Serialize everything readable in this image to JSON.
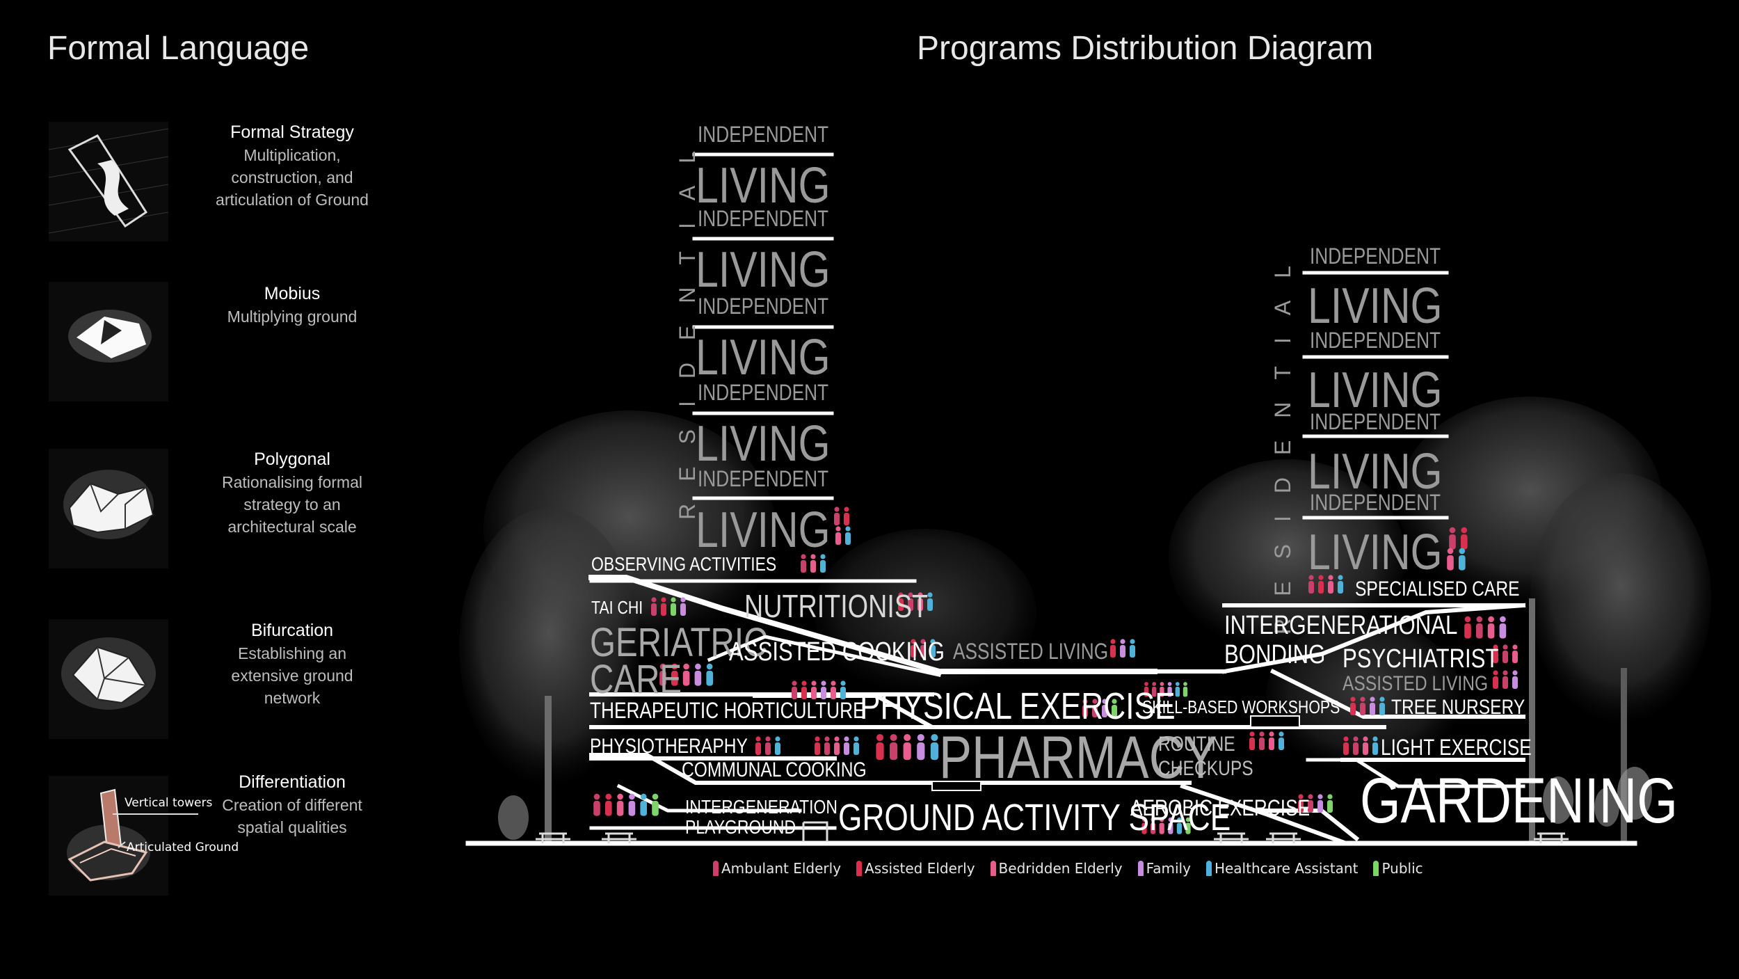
{
  "left_title": "Formal Language",
  "right_title": "Programs Distribution Diagram",
  "formal_items": [
    {
      "heading": "Formal Strategy",
      "body": "Multiplication,\nconstruction, and\narticulation of Ground",
      "icon": "twisted-ribbon-icon"
    },
    {
      "heading": "Mobius",
      "body": "Multiplying ground",
      "icon": "mobius-form-icon"
    },
    {
      "heading": "Polygonal",
      "body": "Rationalising formal\nstrategy to an\narchitectural scale",
      "icon": "polygonal-form-icon"
    },
    {
      "heading": "Bifurcation",
      "body": "Establishing an\nextensive ground\nnetwork",
      "icon": "bifurcation-form-icon"
    },
    {
      "heading": "Differentiation",
      "body": "Creation of different\nspatial qualities",
      "icon": "differentiation-model-icon"
    }
  ],
  "differentiation_callouts": {
    "towers": "Vertical towers",
    "ground": "Articulated Ground"
  },
  "residential_label": "RESIDENTIAL",
  "tower_units": [
    {
      "top": "INDEPENDENT",
      "bottom": "LIVING"
    },
    {
      "top": "INDEPENDENT",
      "bottom": "LIVING"
    },
    {
      "top": "INDEPENDENT",
      "bottom": "LIVING"
    },
    {
      "top": "INDEPENDENT",
      "bottom": "LIVING"
    },
    {
      "top": "INDEPENDENT",
      "bottom": "LIVING"
    }
  ],
  "right_tower_units": [
    {
      "top": "INDEPENDENT",
      "bottom": "LIVING"
    },
    {
      "top": "INDEPENDENT",
      "bottom": "LIVING"
    },
    {
      "top": "INDEPENDENT",
      "bottom": "LIVING"
    },
    {
      "top": "INDEPENDENT",
      "bottom": "LIVING"
    }
  ],
  "programs": {
    "observing": "OBSERVING ACTIVITIES",
    "tai_chi": "TAI CHI",
    "nutritionist": "NUTRITIONIST",
    "geriatric": "GERIATRIC",
    "care": "CARE",
    "assisted_cooking": "ASSISTED COOKING",
    "assisted_living": "ASSISTED LIVING",
    "therapeutic": "THERAPEUTIC HORTICULTURE",
    "physical_exercise": "PHYSICAL EXERCISE",
    "skill_workshops": "SKILL-BASED WORKSHOPS",
    "physiotherapy": "PHYSIOTHERAPHY",
    "communal_cooking": "COMMUNAL COOKING",
    "pharmacy": "PHARMACY",
    "routine": "ROUTINE",
    "checkups": "CHECKUPS",
    "intergeneration_1": "INTERGENERATION",
    "playground": "PLAYGROUND",
    "ground_activity": "GROUND ACTIVITY SPACE",
    "aerobic": "AEROBIC EXERCISE",
    "specialised_care": "SPECIALISED CARE",
    "intergenerational": "INTERGENERATIONAL",
    "bonding": "BONDING",
    "psychiatrist": "PSYCHIATRIST",
    "assisted_living_2": "ASSISTED LIVING",
    "tree_nursery": "TREE NURSERY",
    "light_exercise": "LIGHT EXERCISE",
    "gardening": "GARDENING"
  },
  "legend": [
    {
      "label": "Ambulant Elderly",
      "color": "#c9416a"
    },
    {
      "label": "Assisted Elderly",
      "color": "#d8304f"
    },
    {
      "label": "Bedridden Elderly",
      "color": "#e85c8e"
    },
    {
      "label": "Family",
      "color": "#c98de0"
    },
    {
      "label": "Healthcare Assistant",
      "color": "#4fb3d9"
    },
    {
      "label": "Public",
      "color": "#7fd36b"
    }
  ]
}
